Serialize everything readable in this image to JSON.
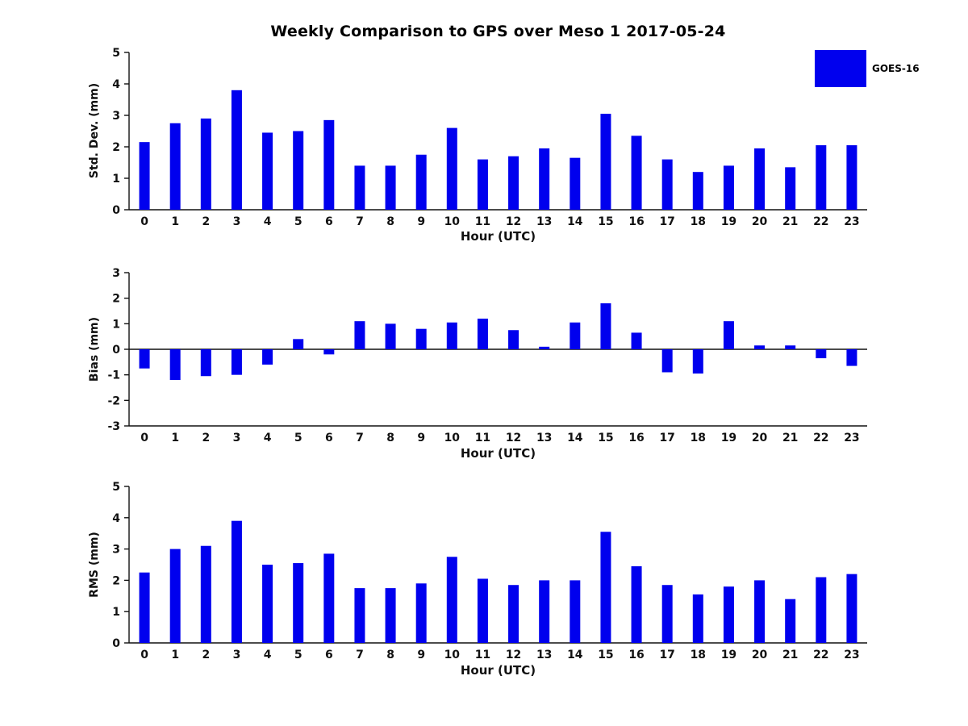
{
  "figure_title": "Weekly Comparison to GPS over Meso 1 2017-05-24",
  "legend": {
    "label": "GOES-16",
    "color": "#0000ee"
  },
  "chart_data": [
    {
      "type": "bar",
      "series_name": "GOES-16",
      "ylabel": "Std. Dev. (mm)",
      "xlabel": "Hour (UTC)",
      "ylim": [
        0,
        5
      ],
      "yticks": [
        0,
        1,
        2,
        3,
        4,
        5
      ],
      "grid": false,
      "legend_position": "upper-right-outside",
      "categories": [
        "0",
        "1",
        "2",
        "3",
        "4",
        "5",
        "6",
        "7",
        "8",
        "9",
        "10",
        "11",
        "12",
        "13",
        "14",
        "15",
        "16",
        "17",
        "18",
        "19",
        "20",
        "21",
        "22",
        "23"
      ],
      "values": [
        2.15,
        2.75,
        2.9,
        3.8,
        2.45,
        2.5,
        2.85,
        1.4,
        1.4,
        1.75,
        2.6,
        1.6,
        1.7,
        1.95,
        1.65,
        3.05,
        2.35,
        1.6,
        1.2,
        1.4,
        1.95,
        1.35,
        2.05,
        2.05
      ]
    },
    {
      "type": "bar",
      "series_name": "GOES-16",
      "ylabel": "Bias (mm)",
      "xlabel": "Hour (UTC)",
      "ylim": [
        -3,
        3
      ],
      "yticks": [
        -3,
        -2,
        -1,
        0,
        1,
        2,
        3
      ],
      "grid": false,
      "categories": [
        "0",
        "1",
        "2",
        "3",
        "4",
        "5",
        "6",
        "7",
        "8",
        "9",
        "10",
        "11",
        "12",
        "13",
        "14",
        "15",
        "16",
        "17",
        "18",
        "19",
        "20",
        "21",
        "22",
        "23"
      ],
      "values": [
        -0.75,
        -1.2,
        -1.05,
        -1.0,
        -0.6,
        0.4,
        -0.2,
        1.1,
        1.0,
        0.8,
        1.05,
        1.2,
        0.75,
        0.1,
        1.05,
        1.8,
        0.65,
        -0.9,
        -0.95,
        1.1,
        0.15,
        0.15,
        -0.35,
        -0.65
      ]
    },
    {
      "type": "bar",
      "series_name": "GOES-16",
      "ylabel": "RMS (mm)",
      "xlabel": "Hour (UTC)",
      "ylim": [
        0,
        5
      ],
      "yticks": [
        0,
        1,
        2,
        3,
        4,
        5
      ],
      "grid": false,
      "categories": [
        "0",
        "1",
        "2",
        "3",
        "4",
        "5",
        "6",
        "7",
        "8",
        "9",
        "10",
        "11",
        "12",
        "13",
        "14",
        "15",
        "16",
        "17",
        "18",
        "19",
        "20",
        "21",
        "22",
        "23"
      ],
      "values": [
        2.25,
        3.0,
        3.1,
        3.9,
        2.5,
        2.55,
        2.85,
        1.75,
        1.75,
        1.9,
        2.75,
        2.05,
        1.85,
        2.0,
        2.0,
        3.55,
        2.45,
        1.85,
        1.55,
        1.8,
        2.0,
        1.4,
        2.1,
        2.2
      ]
    }
  ]
}
